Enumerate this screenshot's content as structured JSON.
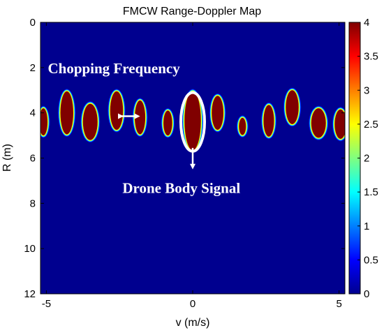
{
  "chart_data": {
    "type": "heatmap",
    "title": "FMCW Range-Doppler Map",
    "xlabel": "v (m/s)",
    "ylabel": "R (m)",
    "xlim": [
      -5.2,
      5.2
    ],
    "ylim": [
      0,
      12
    ],
    "y_reversed": true,
    "x_ticks": [
      -5,
      0,
      5
    ],
    "x_tick_labels": [
      "-5",
      "0",
      "5"
    ],
    "y_ticks": [
      0,
      2,
      4,
      6,
      8,
      10,
      12
    ],
    "y_tick_labels": [
      "0",
      "2",
      "4",
      "6",
      "8",
      "10",
      "12"
    ],
    "colorbar": {
      "range": [
        0,
        4
      ],
      "ticks": [
        0,
        0.5,
        1,
        1.5,
        2,
        2.5,
        3,
        3.5,
        4
      ],
      "tick_labels": [
        "0",
        "0.5",
        "1",
        "1.5",
        "2",
        "2.5",
        "3",
        "3.5",
        "4"
      ],
      "colormap": "jet"
    },
    "background_value": 0,
    "blobs": [
      {
        "v": -5.1,
        "r": 4.4,
        "dv": 0.14,
        "dr": 0.6,
        "value": 4
      },
      {
        "v": -4.3,
        "r": 4.0,
        "dv": 0.22,
        "dr": 0.95,
        "value": 4
      },
      {
        "v": -3.5,
        "r": 4.4,
        "dv": 0.25,
        "dr": 0.8,
        "value": 4
      },
      {
        "v": -2.6,
        "r": 3.9,
        "dv": 0.22,
        "dr": 0.85,
        "value": 4
      },
      {
        "v": -1.8,
        "r": 4.2,
        "dv": 0.18,
        "dr": 0.75,
        "value": 4
      },
      {
        "v": -0.85,
        "r": 4.45,
        "dv": 0.15,
        "dr": 0.55,
        "value": 4
      },
      {
        "v": 0.0,
        "r": 4.35,
        "dv": 0.28,
        "dr": 1.3,
        "value": 4
      },
      {
        "v": 0.85,
        "r": 4.0,
        "dv": 0.2,
        "dr": 0.75,
        "value": 4
      },
      {
        "v": 1.7,
        "r": 4.6,
        "dv": 0.12,
        "dr": 0.38,
        "value": 4
      },
      {
        "v": 2.6,
        "r": 4.35,
        "dv": 0.18,
        "dr": 0.7,
        "value": 4
      },
      {
        "v": 3.4,
        "r": 3.75,
        "dv": 0.22,
        "dr": 0.75,
        "value": 4
      },
      {
        "v": 4.3,
        "r": 4.45,
        "dv": 0.25,
        "dr": 0.65,
        "value": 4
      },
      {
        "v": 5.05,
        "r": 4.5,
        "dv": 0.2,
        "dr": 0.65,
        "value": 4
      }
    ],
    "annotations": [
      {
        "text": "Chopping Frequency",
        "v": -4.95,
        "r": 2.25
      },
      {
        "text": "Drone Body Signal",
        "v": -2.4,
        "r": 7.55
      }
    ],
    "markers": {
      "ellipse": {
        "v": 0.0,
        "r": 4.4
      },
      "double_arrow": {
        "v1": -2.6,
        "v2": -1.75,
        "r": 4.15
      },
      "down_arrow": {
        "v": 0.0,
        "r1": 5.55,
        "r2": 6.5
      }
    }
  }
}
